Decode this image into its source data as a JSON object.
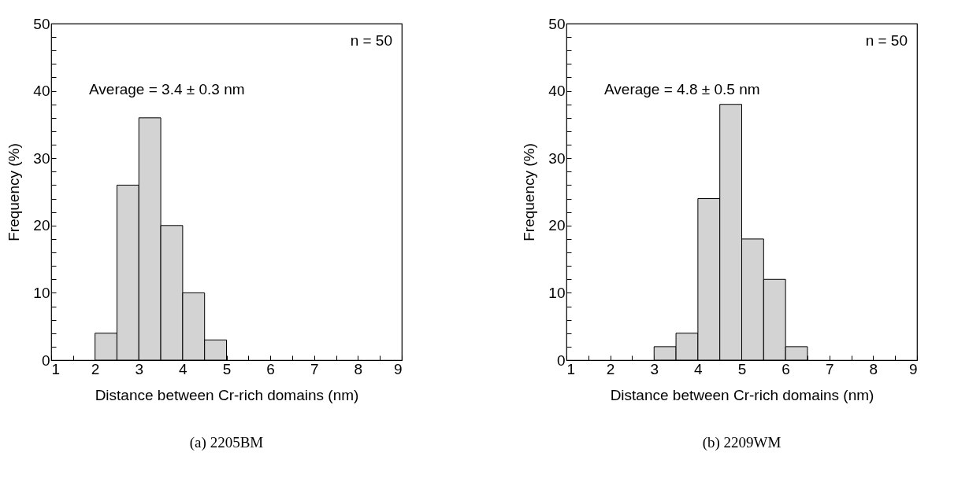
{
  "chart_data": [
    {
      "type": "histogram",
      "title": "(a)  2205BM",
      "xlabel": "Distance between  Cr-rich domains  (nm)",
      "ylabel": "Frequency (%)",
      "bins": [
        2,
        2.5,
        3,
        3.5,
        4,
        4.5,
        5
      ],
      "values": [
        4,
        26,
        36,
        20,
        10,
        3
      ],
      "color": "#d3d3d3",
      "xlim": [
        1,
        9
      ],
      "ylim": [
        0,
        50
      ],
      "xticks": [
        1,
        {
          "value": 1.5,
          "label": null
        },
        2,
        {
          "value": 2.5,
          "label": null
        },
        3,
        {
          "value": 3.5,
          "label": null
        },
        4,
        {
          "value": 4.5,
          "label": null
        },
        5,
        {
          "value": 5.5,
          "label": null
        },
        6,
        {
          "value": 6.5,
          "label": null
        },
        7,
        {
          "value": 7.5,
          "label": null
        },
        8,
        {
          "value": 8.5,
          "label": null
        },
        9
      ],
      "yticks": [
        0,
        {
          "value": 2,
          "label": null
        },
        {
          "value": 4,
          "label": null
        },
        {
          "value": 6,
          "label": null
        },
        {
          "value": 8,
          "label": null
        },
        10,
        {
          "value": 12,
          "label": null
        },
        {
          "value": 14,
          "label": null
        },
        {
          "value": 16,
          "label": null
        },
        {
          "value": 18,
          "label": null
        },
        20,
        {
          "value": 22,
          "label": null
        },
        {
          "value": 24,
          "label": null
        },
        {
          "value": 26,
          "label": null
        },
        {
          "value": 28,
          "label": null
        },
        30,
        {
          "value": 32,
          "label": null
        },
        {
          "value": 34,
          "label": null
        },
        {
          "value": 36,
          "label": null
        },
        {
          "value": 38,
          "label": null
        },
        40,
        {
          "value": 42,
          "label": null
        },
        {
          "value": 44,
          "label": null
        },
        {
          "value": 46,
          "label": null
        },
        {
          "value": 48,
          "label": null
        },
        50
      ],
      "grid": false,
      "annotations": [
        "n = 50",
        "Average = 3.4 ± 0.3 nm"
      ]
    },
    {
      "type": "histogram",
      "title": "(b)  2209WM",
      "xlabel": "Distance between  Cr-rich domains  (nm)",
      "ylabel": "Frequency (%)",
      "bins": [
        3,
        3.5,
        4,
        4.5,
        5,
        5.5,
        6,
        6.5
      ],
      "values": [
        2,
        4,
        24,
        38,
        18,
        12,
        2
      ],
      "color": "#d3d3d3",
      "xlim": [
        1,
        9
      ],
      "ylim": [
        0,
        50
      ],
      "xticks": [
        1,
        {
          "value": 1.5,
          "label": null
        },
        2,
        {
          "value": 2.5,
          "label": null
        },
        3,
        {
          "value": 3.5,
          "label": null
        },
        4,
        {
          "value": 4.5,
          "label": null
        },
        5,
        {
          "value": 5.5,
          "label": null
        },
        6,
        {
          "value": 6.5,
          "label": null
        },
        7,
        {
          "value": 7.5,
          "label": null
        },
        8,
        {
          "value": 8.5,
          "label": null
        },
        9
      ],
      "yticks": [
        0,
        {
          "value": 2,
          "label": null
        },
        {
          "value": 4,
          "label": null
        },
        {
          "value": 6,
          "label": null
        },
        {
          "value": 8,
          "label": null
        },
        10,
        {
          "value": 12,
          "label": null
        },
        {
          "value": 14,
          "label": null
        },
        {
          "value": 16,
          "label": null
        },
        {
          "value": 18,
          "label": null
        },
        20,
        {
          "value": 22,
          "label": null
        },
        {
          "value": 24,
          "label": null
        },
        {
          "value": 26,
          "label": null
        },
        {
          "value": 28,
          "label": null
        },
        30,
        {
          "value": 32,
          "label": null
        },
        {
          "value": 34,
          "label": null
        },
        {
          "value": 36,
          "label": null
        },
        {
          "value": 38,
          "label": null
        },
        40,
        {
          "value": 42,
          "label": null
        },
        {
          "value": 44,
          "label": null
        },
        {
          "value": 46,
          "label": null
        },
        {
          "value": 48,
          "label": null
        },
        50
      ],
      "grid": false,
      "annotations": [
        "n = 50",
        "Average = 4.8 ± 0.5 nm"
      ]
    }
  ]
}
